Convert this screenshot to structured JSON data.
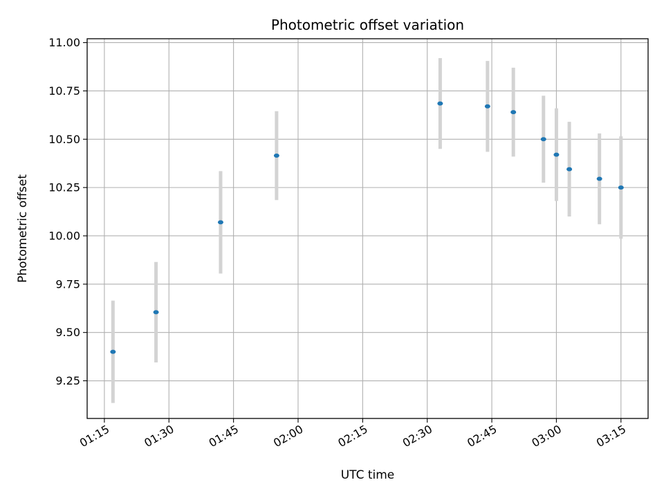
{
  "chart_data": {
    "type": "scatter",
    "title": "Photometric offset variation",
    "xlabel": "UTC time",
    "ylabel": "Photometric offset",
    "x_tick_labels": [
      "01:15",
      "01:30",
      "01:45",
      "02:00",
      "02:15",
      "02:30",
      "02:45",
      "03:00",
      "03:15"
    ],
    "x_tick_minutes": [
      75,
      90,
      105,
      120,
      135,
      150,
      165,
      180,
      195
    ],
    "xlim_minutes": [
      71,
      201.3
    ],
    "y_ticks": [
      9.25,
      9.5,
      9.75,
      10.0,
      10.25,
      10.5,
      10.75,
      11.0
    ],
    "y_tick_labels": [
      "9.25",
      "9.50",
      "9.75",
      "10.00",
      "10.25",
      "10.50",
      "10.75",
      "11.00"
    ],
    "ylim": [
      9.055,
      11.02
    ],
    "grid": true,
    "series": [
      {
        "marker_color": "#1f77b4",
        "errorbar_color": "#d3d3d3",
        "points": [
          {
            "time": "01:17",
            "y": 9.4,
            "yerr": 0.265
          },
          {
            "time": "01:27",
            "y": 9.605,
            "yerr": 0.26
          },
          {
            "time": "01:42",
            "y": 10.07,
            "yerr": 0.265
          },
          {
            "time": "01:55",
            "y": 10.415,
            "yerr": 0.23
          },
          {
            "time": "02:33",
            "y": 10.685,
            "yerr": 0.235
          },
          {
            "time": "02:44",
            "y": 10.67,
            "yerr": 0.235
          },
          {
            "time": "02:50",
            "y": 10.64,
            "yerr": 0.23
          },
          {
            "time": "02:57",
            "y": 10.5,
            "yerr": 0.225
          },
          {
            "time": "03:00",
            "y": 10.42,
            "yerr": 0.24
          },
          {
            "time": "03:03",
            "y": 10.345,
            "yerr": 0.245
          },
          {
            "time": "03:10",
            "y": 10.295,
            "yerr": 0.235
          },
          {
            "time": "03:15",
            "y": 10.25,
            "yerr": 0.265
          }
        ]
      }
    ]
  }
}
